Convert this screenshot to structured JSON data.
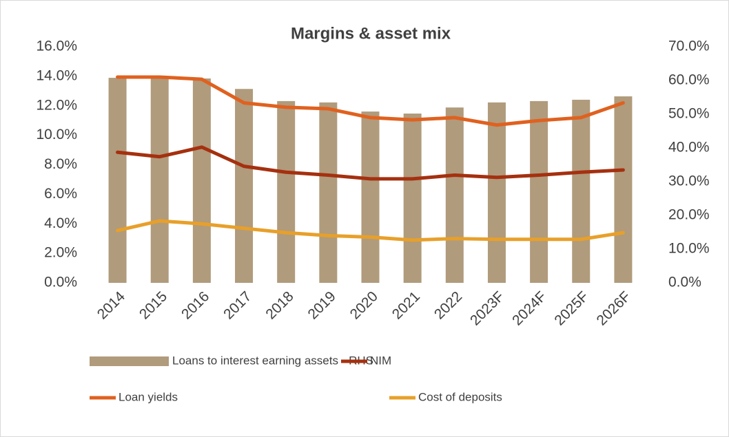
{
  "chart_data": {
    "type": "combo",
    "title": "Margins & asset mix",
    "categories": [
      "2014",
      "2015",
      "2016",
      "2017",
      "2018",
      "2019",
      "2020",
      "2021",
      "2022",
      "2023F",
      "2024F",
      "2025F",
      "2026F"
    ],
    "series": [
      {
        "name": "Loans to interest earning assets - RHS",
        "type": "bar",
        "axis": "y2",
        "color": "#b09b7c",
        "values": [
          60.8,
          60.8,
          60.6,
          57.5,
          53.9,
          53.5,
          50.8,
          50.2,
          52.0,
          53.5,
          53.9,
          54.3,
          55.3
        ]
      },
      {
        "name": "NIM",
        "type": "line",
        "color": "#a5300f",
        "values": [
          8.85,
          8.55,
          9.2,
          7.9,
          7.5,
          7.3,
          7.05,
          7.05,
          7.3,
          7.15,
          7.3,
          7.5,
          7.65
        ]
      },
      {
        "name": "Loan yields",
        "type": "line",
        "color": "#e0611f",
        "values": [
          13.95,
          13.95,
          13.8,
          12.2,
          11.9,
          11.8,
          11.2,
          11.05,
          11.2,
          10.7,
          11.0,
          11.2,
          12.2
        ]
      },
      {
        "name": "Cost of deposits",
        "type": "line",
        "color": "#e8a02a",
        "values": [
          3.55,
          4.2,
          4.0,
          3.7,
          3.4,
          3.2,
          3.1,
          2.9,
          3.0,
          2.95,
          2.95,
          2.95,
          3.4
        ]
      }
    ],
    "ylim": [
      0,
      16
    ],
    "yticks": [
      {
        "value": 0,
        "label": "0.0%"
      },
      {
        "value": 2,
        "label": "2.0%"
      },
      {
        "value": 4,
        "label": "4.0%"
      },
      {
        "value": 6,
        "label": "6.0%"
      },
      {
        "value": 8,
        "label": "8.0%"
      },
      {
        "value": 10,
        "label": "10.0%"
      },
      {
        "value": 12,
        "label": "12.0%"
      },
      {
        "value": 14,
        "label": "14.0%"
      },
      {
        "value": 16,
        "label": "16.0%"
      }
    ],
    "y2lim": [
      0,
      70
    ],
    "y2ticks": [
      {
        "value": 0,
        "label": "0.0%"
      },
      {
        "value": 10,
        "label": "10.0%"
      },
      {
        "value": 20,
        "label": "20.0%"
      },
      {
        "value": 30,
        "label": "30.0%"
      },
      {
        "value": 40,
        "label": "40.0%"
      },
      {
        "value": 50,
        "label": "50.0%"
      },
      {
        "value": 60,
        "label": "60.0%"
      },
      {
        "value": 70,
        "label": "70.0%"
      }
    ],
    "grid": false,
    "legend": "bottom"
  }
}
